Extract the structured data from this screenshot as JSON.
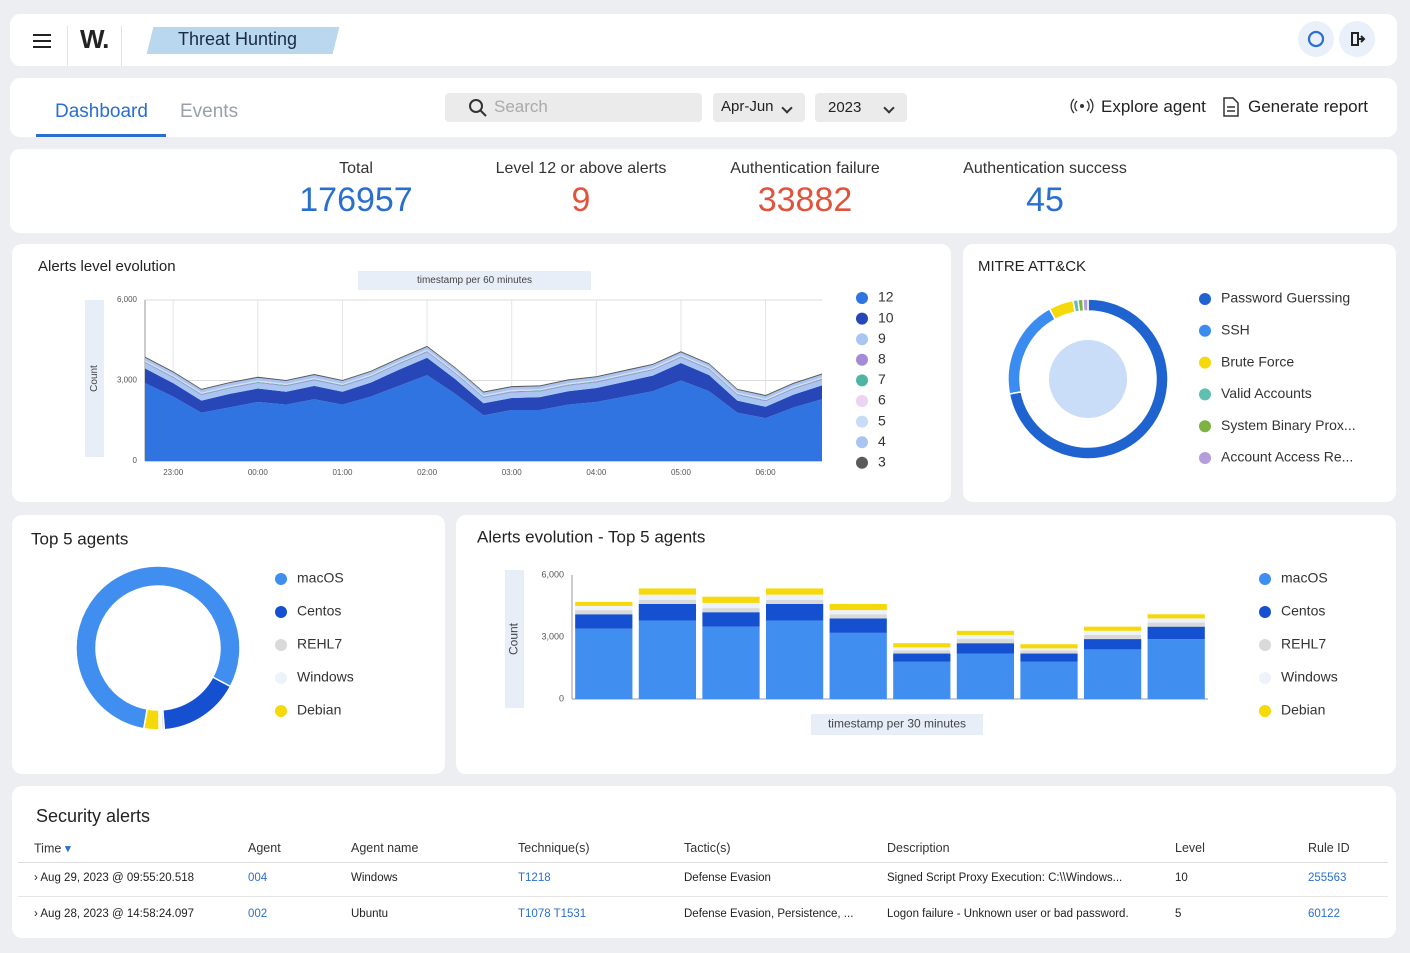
{
  "header": {
    "logo": "W.",
    "title": "Threat Hunting"
  },
  "toolbar": {
    "tabs": [
      "Dashboard",
      "Events"
    ],
    "search": "Search",
    "period": "Apr-Jun",
    "year": "2023",
    "actions": [
      "Explore agent",
      "Generate report"
    ]
  },
  "stats": [
    {
      "label": "Total",
      "value": 176957,
      "color": "#2a6fd0"
    },
    {
      "label": "Level 12 or above alerts",
      "value": 9,
      "color": "#e0533d"
    },
    {
      "label": "Authentication failure",
      "value": 33882,
      "color": "#e0533d"
    },
    {
      "label": "Authentication success",
      "value": 45,
      "color": "#2a6fd0"
    }
  ],
  "chart_data": [
    {
      "type": "area",
      "title": "Alerts level evolution",
      "x_label": "timestamp per 60 minutes",
      "y_label": "Count",
      "stacked": true,
      "grid": true,
      "categories": [
        null,
        "23:00",
        null,
        null,
        "00:00",
        null,
        null,
        "01:00",
        null,
        null,
        "02:00",
        null,
        null,
        "03:00",
        null,
        null,
        "04:00",
        null,
        null,
        "05:00",
        null,
        null,
        "06:00",
        null,
        null
      ],
      "ylim": [
        0,
        6000
      ],
      "yticks": [
        0,
        {
          "value": 3000,
          "label": "3,000"
        },
        {
          "value": 6000,
          "label": "6,000"
        }
      ],
      "series": [
        {
          "name": "12",
          "color": "#2f74e0",
          "values": [
            2900,
            2400,
            1800,
            2000,
            2200,
            2100,
            2300,
            2100,
            2400,
            2800,
            3200,
            2500,
            1700,
            1900,
            1900,
            2100,
            2200,
            2400,
            2600,
            3000,
            2600,
            1800,
            1600,
            2000,
            2300
          ]
        },
        {
          "name": "10",
          "color": "#2747b8",
          "values": [
            550,
            500,
            450,
            500,
            500,
            480,
            500,
            480,
            520,
            600,
            650,
            550,
            450,
            450,
            480,
            500,
            520,
            550,
            580,
            650,
            600,
            450,
            420,
            480,
            520
          ]
        },
        {
          "name": "9",
          "color": "#a9c6f2",
          "values": [
            200,
            200,
            200,
            200,
            200,
            200,
            200,
            200,
            200,
            200,
            200,
            200,
            200,
            200,
            200,
            200,
            200,
            200,
            200,
            200,
            200,
            200,
            200,
            200,
            200
          ]
        },
        {
          "name": "8",
          "color": "#a48bd8",
          "values": [
            30,
            30,
            30,
            30,
            30,
            30,
            30,
            30,
            30,
            30,
            30,
            30,
            30,
            30,
            30,
            30,
            30,
            30,
            30,
            30,
            30,
            30,
            30,
            30,
            30
          ]
        },
        {
          "name": "7",
          "color": "#4db6a2",
          "values": [
            20,
            20,
            20,
            20,
            20,
            20,
            20,
            20,
            20,
            20,
            20,
            20,
            20,
            20,
            20,
            20,
            20,
            20,
            20,
            20,
            20,
            20,
            20,
            20,
            20
          ]
        },
        {
          "name": "6",
          "color": "#ecd3f2",
          "values": [
            20,
            20,
            20,
            20,
            20,
            20,
            20,
            20,
            20,
            20,
            20,
            20,
            20,
            20,
            20,
            20,
            20,
            20,
            20,
            20,
            20,
            20,
            20,
            20,
            20
          ]
        },
        {
          "name": "5",
          "color": "#c8dbf6",
          "values": [
            30,
            30,
            30,
            30,
            30,
            30,
            30,
            30,
            30,
            30,
            30,
            30,
            30,
            30,
            30,
            30,
            30,
            30,
            30,
            30,
            30,
            30,
            30,
            30,
            30
          ]
        },
        {
          "name": "4",
          "color": "#a8c4f2",
          "values": [
            100,
            100,
            100,
            100,
            100,
            100,
            100,
            100,
            100,
            100,
            100,
            100,
            100,
            100,
            100,
            100,
            100,
            100,
            100,
            100,
            100,
            100,
            100,
            100,
            100
          ]
        },
        {
          "name": "3",
          "color": "#5a5a5a",
          "values": [
            40,
            40,
            40,
            40,
            40,
            40,
            40,
            40,
            40,
            40,
            40,
            40,
            40,
            40,
            40,
            40,
            40,
            40,
            40,
            40,
            40,
            40,
            40,
            40,
            40
          ]
        }
      ]
    },
    {
      "type": "donut",
      "title": "MITRE ATT&CK",
      "labels": [
        "Password Guerssing",
        "SSH",
        "Brute Force",
        "Valid Accounts",
        "System Binary Prox...",
        "Account Access Re..."
      ],
      "values": [
        72,
        20,
        5,
        1,
        1,
        1
      ],
      "colors": [
        "#1f63d0",
        "#3b8cf0",
        "#f5d90a",
        "#5fbfb0",
        "#7cb342",
        "#b39ddb"
      ]
    },
    {
      "type": "donut",
      "title": "Top 5 agents",
      "labels": [
        "macOS",
        "Centos",
        "REHL7",
        "Windows",
        "Debian"
      ],
      "values": [
        80,
        16,
        0.5,
        0.5,
        3
      ],
      "colors": [
        "#3f8ef0",
        "#1450d0",
        "#d9d9d9",
        "#eef2fa",
        "#f5d90a"
      ]
    },
    {
      "type": "stacked_bar",
      "title": "Alerts evolution - Top 5 agents",
      "x_label": "timestamp per 30 minutes",
      "y_label": "Count",
      "categories": [
        null,
        null,
        null,
        null,
        null,
        null,
        null,
        null,
        null,
        null
      ],
      "ylim": [
        0,
        6000
      ],
      "yticks": [
        0,
        {
          "value": 3000,
          "label": "3,000"
        },
        {
          "value": 6000,
          "label": "6,000"
        }
      ],
      "series": [
        {
          "name": "macOS",
          "color": "#3f8ef0",
          "values": [
            3400,
            3800,
            3500,
            3800,
            3200,
            1800,
            2200,
            1800,
            2400,
            2900
          ]
        },
        {
          "name": "Centos",
          "color": "#1450d0",
          "values": [
            700,
            800,
            700,
            800,
            700,
            400,
            500,
            400,
            500,
            600
          ]
        },
        {
          "name": "REHL7",
          "color": "#d9d9d9",
          "values": [
            200,
            200,
            200,
            200,
            200,
            150,
            200,
            150,
            200,
            200
          ]
        },
        {
          "name": "Windows",
          "color": "#eef2fa",
          "values": [
            200,
            250,
            250,
            250,
            200,
            150,
            200,
            100,
            200,
            200
          ]
        },
        {
          "name": "Debian",
          "color": "#f5d90a",
          "values": [
            200,
            300,
            300,
            300,
            300,
            200,
            200,
            200,
            200,
            200
          ]
        }
      ]
    }
  ],
  "table": {
    "title": "Security alerts",
    "columns": [
      "Time",
      "Agent",
      "Agent name",
      "Technique(s)",
      "Tactic(s)",
      "Description",
      "Level",
      "Rule ID"
    ],
    "rows": [
      [
        "Aug 29, 2023 @ 09:55:20.518",
        "004",
        "Windows",
        "T1218",
        "Defense Evasion",
        "Signed Script Proxy Execution: C:\\\\Windows...",
        10,
        "255563"
      ],
      [
        "Aug 28, 2023 @ 14:58:24.097",
        "002",
        "Ubuntu",
        "T1078  T1531",
        "Defense Evasion, Persistence, ...",
        "Logon failure - Unknown user or bad password.",
        5,
        "60122"
      ]
    ]
  }
}
